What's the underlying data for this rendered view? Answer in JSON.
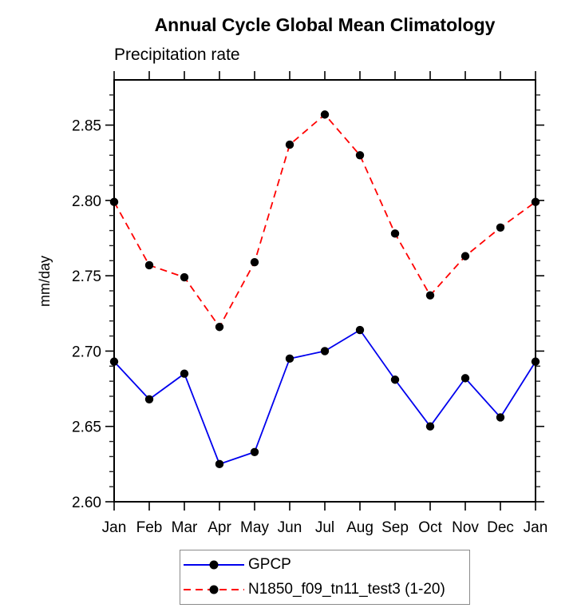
{
  "chart_data": {
    "type": "line",
    "title": "Annual Cycle Global Mean Climatology",
    "subtitle": "Precipitation rate",
    "ylabel": "mm/day",
    "xlabel": "",
    "categories": [
      "Jan",
      "Feb",
      "Mar",
      "Apr",
      "May",
      "Jun",
      "Jul",
      "Aug",
      "Sep",
      "Oct",
      "Nov",
      "Dec",
      "Jan"
    ],
    "series": [
      {
        "name": "GPCP",
        "color": "#0000ee",
        "line_style": "solid",
        "marker": "black-dot",
        "values": [
          2.693,
          2.668,
          2.685,
          2.625,
          2.633,
          2.695,
          2.7,
          2.714,
          2.681,
          2.65,
          2.682,
          2.656,
          2.693
        ]
      },
      {
        "name": "N1850_f09_tn11_test3 (1-20)",
        "color": "#ff0000",
        "line_style": "dashed",
        "marker": "black-dot",
        "values": [
          2.799,
          2.757,
          2.749,
          2.716,
          2.759,
          2.837,
          2.857,
          2.83,
          2.778,
          2.737,
          2.763,
          2.782,
          2.799
        ]
      }
    ],
    "ylim": [
      2.6,
      2.88
    ],
    "ytick_values": [
      2.6,
      2.65,
      2.7,
      2.75,
      2.8,
      2.85
    ],
    "ytick_labels": [
      "2.60",
      "2.65",
      "2.70",
      "2.75",
      "2.80",
      "2.85"
    ],
    "minor_tick_step": 0.01,
    "grid": false,
    "frame_color": "#000000",
    "legend_position": "bottom-center"
  }
}
